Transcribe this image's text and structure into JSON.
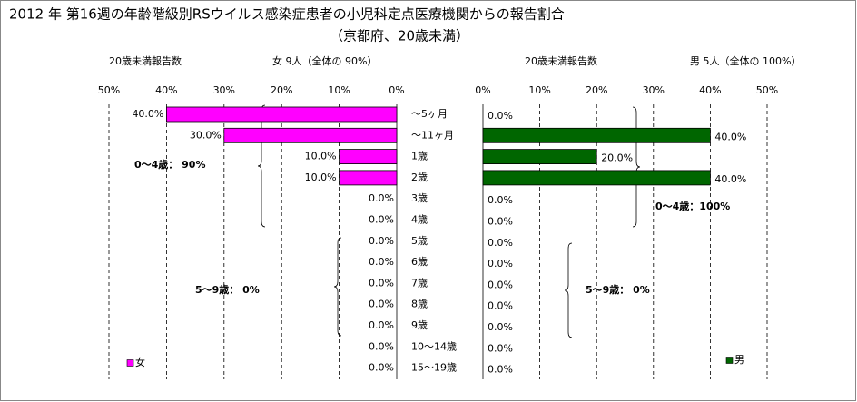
{
  "title": "2012 年 第16週の年齢階級別RSウイルス感染症患者の小児科定点医療機関からの報告割合",
  "subtitle": "（京都府、20歳未満）",
  "chart_data": [
    {
      "type": "bar",
      "orientation": "horizontal",
      "xreversed": true,
      "count_label": "20歳未満報告数",
      "summary": "女 9人（全体の 90%）",
      "categories": [
        "～5ヶ月",
        "～11ヶ月",
        "1歳",
        "2歳",
        "3歳",
        "4歳",
        "5歳",
        "6歳",
        "7歳",
        "8歳",
        "9歳",
        "10～14歳",
        "15～19歳"
      ],
      "series": [
        {
          "name": "女",
          "color": "#ff00ff",
          "values": [
            40,
            30,
            10,
            10,
            0,
            0,
            0,
            0,
            0,
            0,
            0,
            0,
            0
          ],
          "value_labels": [
            "40.0%",
            "30.0%",
            "10.0%",
            "10.0%",
            "0.0%",
            "0.0%",
            "0.0%",
            "0.0%",
            "0.0%",
            "0.0%",
            "0.0%",
            "0.0%",
            "0.0%"
          ]
        }
      ],
      "xlim": [
        0,
        50
      ],
      "xticks": [
        {
          "value": 0,
          "label": "0%"
        },
        {
          "value": 10,
          "label": "10%"
        },
        {
          "value": 20,
          "label": "20%"
        },
        {
          "value": 30,
          "label": "30%"
        },
        {
          "value": 40,
          "label": "40%"
        },
        {
          "value": 50,
          "label": "50%"
        }
      ],
      "grid": true,
      "legend": "bottom-left",
      "annotations": [
        "0～4歳： 90%",
        "5～9歳： 0%"
      ]
    },
    {
      "type": "bar",
      "orientation": "horizontal",
      "xreversed": false,
      "count_label": "20歳未満報告数",
      "summary": "男 5人（全体の 100%）",
      "series": [
        {
          "name": "男",
          "color": "#006600",
          "values": [
            0,
            40,
            20,
            40,
            0,
            0,
            0,
            0,
            0,
            0,
            0,
            0,
            0
          ],
          "value_labels": [
            "0.0%",
            "40.0%",
            "20.0%",
            "40.0%",
            "0.0%",
            "0.0%",
            "0.0%",
            "0.0%",
            "0.0%",
            "0.0%",
            "0.0%",
            "0.0%",
            "0.0%"
          ]
        }
      ],
      "xlim": [
        0,
        50
      ],
      "xticks": [
        {
          "value": 0,
          "label": "0%"
        },
        {
          "value": 10,
          "label": "10%"
        },
        {
          "value": 20,
          "label": "20%"
        },
        {
          "value": 30,
          "label": "30%"
        },
        {
          "value": 40,
          "label": "40%"
        },
        {
          "value": 50,
          "label": "50%"
        }
      ],
      "grid": true,
      "legend": "bottom-right",
      "annotations": [
        "0～4歳：100%",
        "5～9歳： 0%"
      ]
    }
  ]
}
